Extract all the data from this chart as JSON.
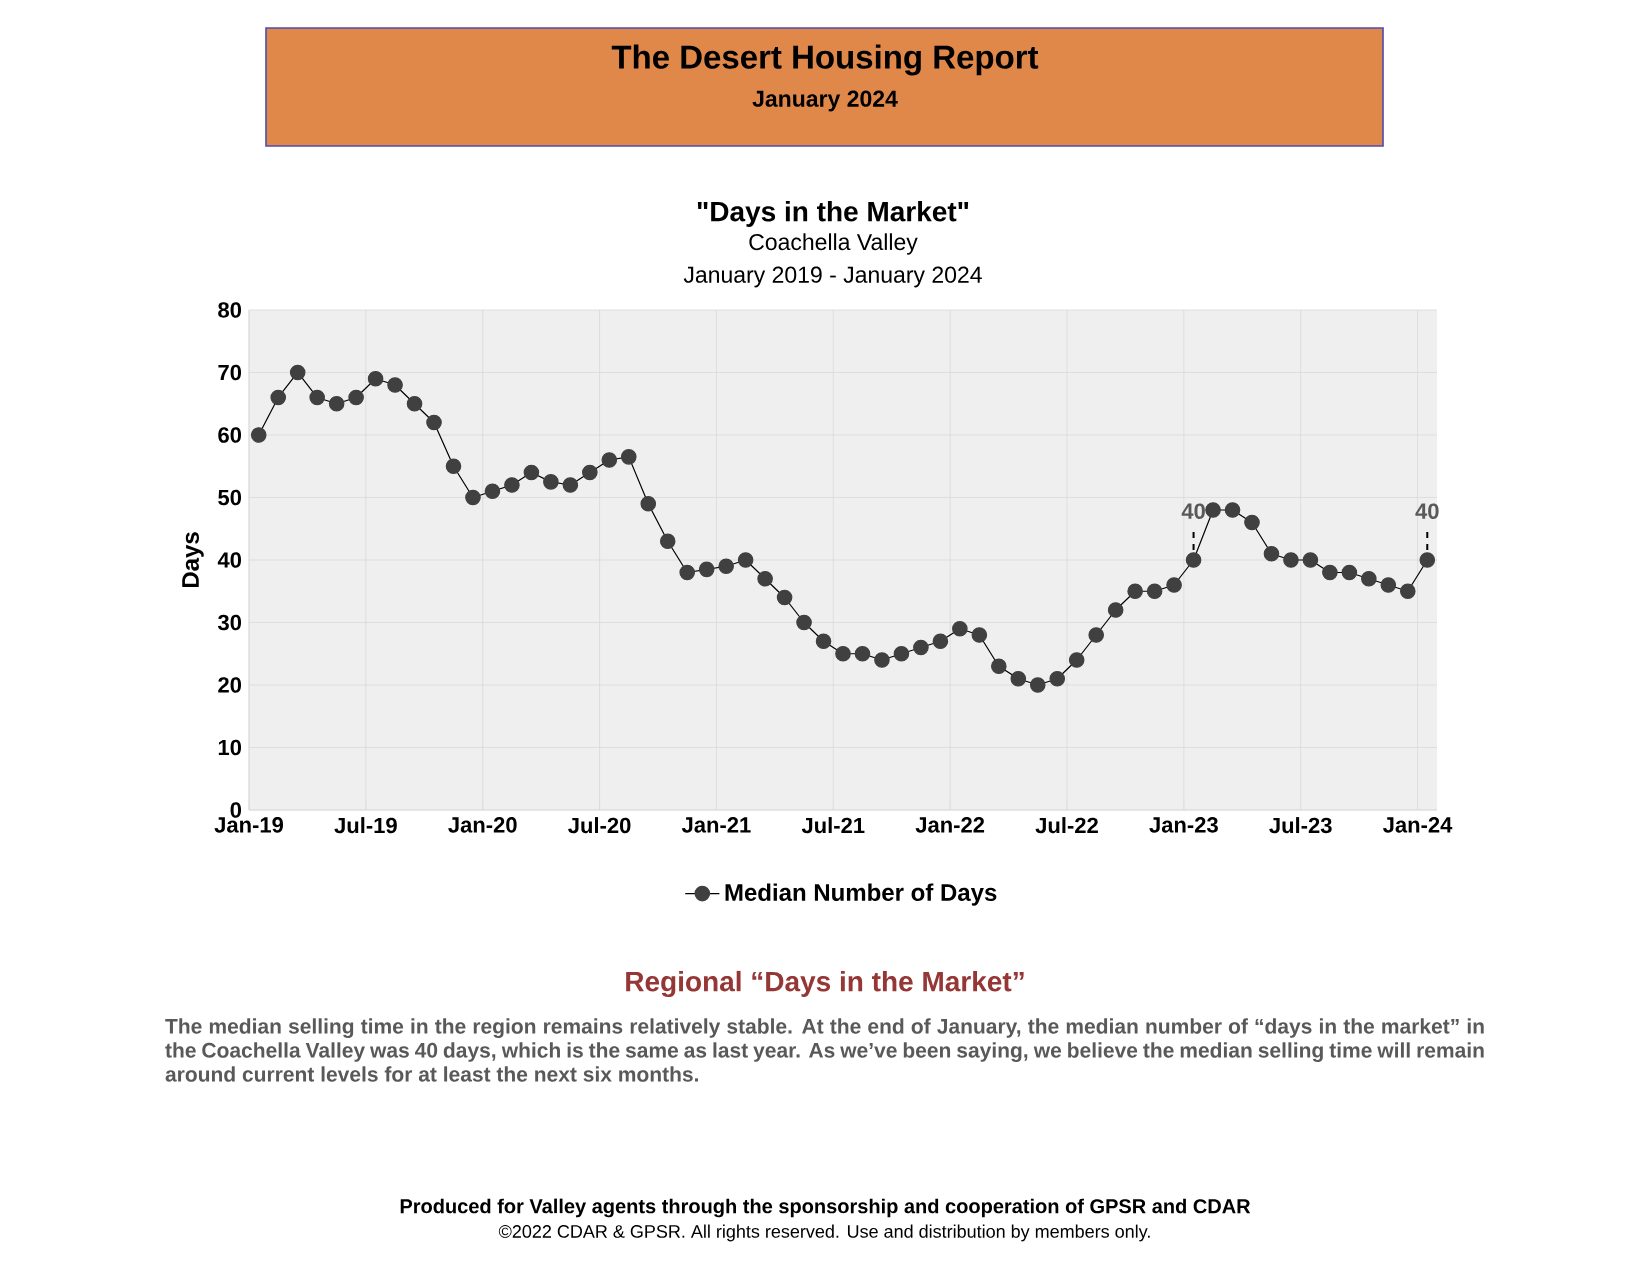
{
  "chart_data": {
    "type": "line",
    "title": "\"Days in the Market\"",
    "subtitle": "Coachella Valley",
    "ylabel": "Days",
    "annotations": [
      "The Desert Housing Report",
      "January 2024",
      "January 2019 - January 2024",
      "Regional “Days in the Market”",
      "The median selling time in the region remains relatively stable. At the end of January, the median number of “days in the market” in the Coachella Valley was 40 days, which is the same as last year. As we’ve been saying, we believe the median selling time will remain around current levels for at least the next six months.",
      "Produced for Valley agents through the sponsorship and cooperation of GPSR and CDAR",
      "©2022 CDAR & GPSR.  All rights reserved.  Use and distribution by members only.",
      {
        "text": "40",
        "x": "2023-01-16",
        "y": 40
      },
      {
        "text": "40",
        "x": "2024-01-16",
        "y": 40
      }
    ],
    "x": [
      "2019-01-16",
      "2019-02-16",
      "2019-03-16",
      "2019-04-16",
      "2019-05-16",
      "2019-06-16",
      "2019-07-16",
      "2019-08-16",
      "2019-09-16",
      "2019-10-16",
      "2019-11-16",
      "2019-12-16",
      "2020-01-16",
      "2020-02-16",
      "2020-03-16",
      "2020-04-16",
      "2020-05-16",
      "2020-06-16",
      "2020-07-16",
      "2020-08-16",
      "2020-09-16",
      "2020-10-16",
      "2020-11-16",
      "2020-12-16",
      "2021-01-16",
      "2021-02-16",
      "2021-03-16",
      "2021-04-16",
      "2021-05-16",
      "2021-06-16",
      "2021-07-16",
      "2021-08-16",
      "2021-09-16",
      "2021-10-16",
      "2021-11-16",
      "2021-12-16",
      "2022-01-16",
      "2022-02-16",
      "2022-03-16",
      "2022-04-16",
      "2022-05-16",
      "2022-06-16",
      "2022-07-16",
      "2022-08-16",
      "2022-09-16",
      "2022-10-16",
      "2022-11-16",
      "2022-12-16",
      "2023-01-16",
      "2023-02-16",
      "2023-03-16",
      "2023-04-16",
      "2023-05-16",
      "2023-06-16",
      "2023-07-16",
      "2023-08-16",
      "2023-09-16",
      "2023-10-16",
      "2023-11-16",
      "2023-12-16",
      "2024-01-16"
    ],
    "series": [
      {
        "name": "Median Number of Days",
        "color": "#404040",
        "values": [
          60,
          66,
          70,
          66,
          65,
          66,
          69,
          68,
          65,
          62,
          55,
          50,
          51,
          52,
          54,
          52.5,
          52,
          54,
          56,
          56.5,
          49,
          43,
          38,
          38.5,
          39,
          40,
          37,
          34,
          30,
          27,
          25,
          25,
          24,
          25,
          26,
          27,
          29,
          28,
          23,
          21,
          20,
          21,
          24,
          28,
          32,
          35,
          35,
          36,
          40,
          48,
          48,
          46,
          41,
          40,
          40,
          38,
          38,
          37,
          36,
          35,
          40
        ]
      }
    ],
    "xlim": [
      "2019-01",
      "2024-02"
    ],
    "xticks": [
      {
        "value": "2019-01",
        "label": "Jan-19"
      },
      {
        "value": "2019-07",
        "label": "Jul-19"
      },
      {
        "value": "2020-01",
        "label": "Jan-20"
      },
      {
        "value": "2020-07",
        "label": "Jul-20"
      },
      {
        "value": "2021-01",
        "label": "Jan-21"
      },
      {
        "value": "2021-07",
        "label": "Jul-21"
      },
      {
        "value": "2022-01",
        "label": "Jan-22"
      },
      {
        "value": "2022-07",
        "label": "Jul-22"
      },
      {
        "value": "2023-01",
        "label": "Jan-23"
      },
      {
        "value": "2023-07",
        "label": "Jul-23"
      },
      {
        "value": "2024-01",
        "label": "Jan-24"
      }
    ],
    "ylim": [
      0,
      80
    ],
    "yticks": [
      0,
      10,
      20,
      30,
      40,
      50,
      60,
      70,
      80
    ],
    "grid": true,
    "legend": "bottom",
    "marker": "circle",
    "line_style": "solid"
  }
}
